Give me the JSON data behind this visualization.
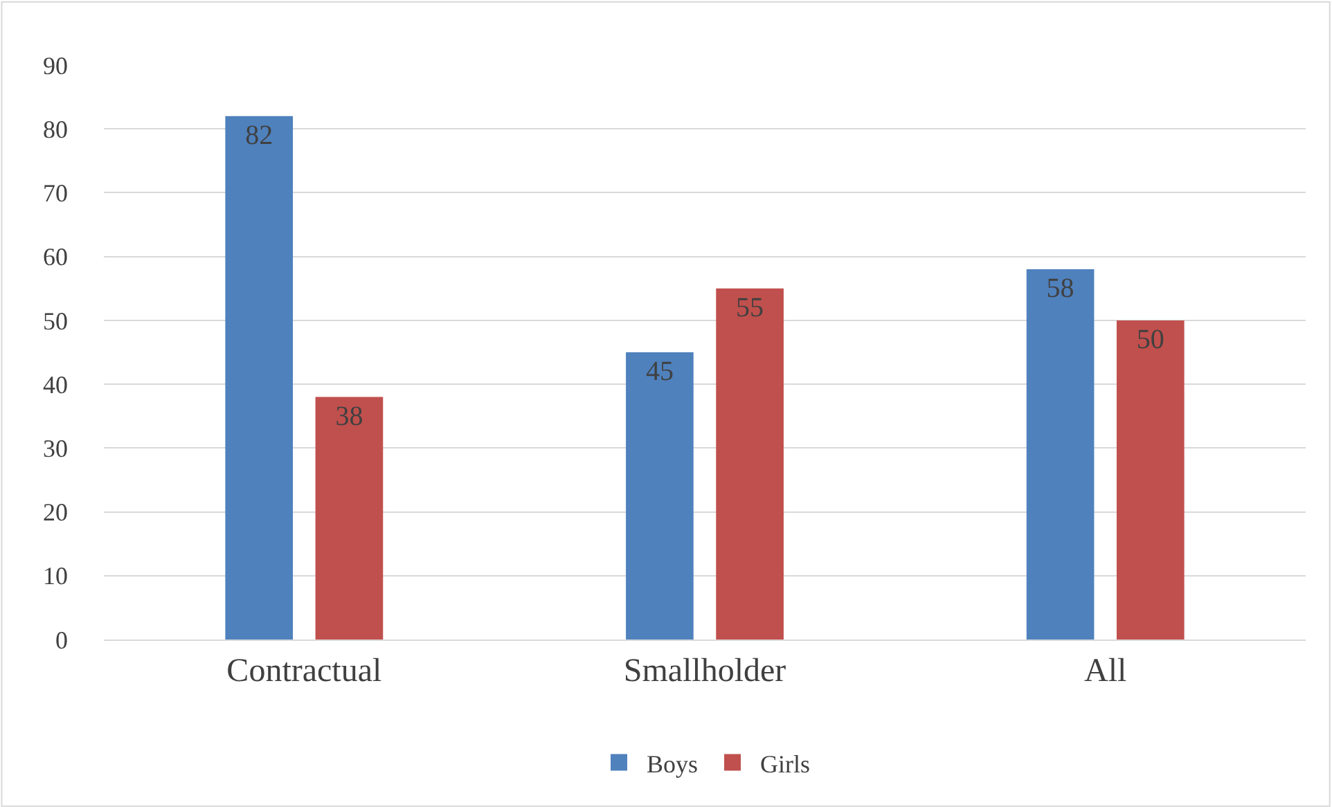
{
  "chart_data": {
    "type": "bar",
    "categories": [
      "Contractual",
      "Smallholder",
      "All"
    ],
    "series": [
      {
        "name": "Boys",
        "color": "#4f81bd",
        "values": [
          82,
          45,
          58
        ]
      },
      {
        "name": "Girls",
        "color": "#c0504d",
        "values": [
          38,
          55,
          50
        ]
      }
    ],
    "ylim": [
      0,
      90
    ],
    "yticks": [
      0,
      10,
      20,
      30,
      40,
      50,
      60,
      70,
      80,
      90
    ],
    "grid": "y",
    "legend": "bottom",
    "data_labels": true
  }
}
